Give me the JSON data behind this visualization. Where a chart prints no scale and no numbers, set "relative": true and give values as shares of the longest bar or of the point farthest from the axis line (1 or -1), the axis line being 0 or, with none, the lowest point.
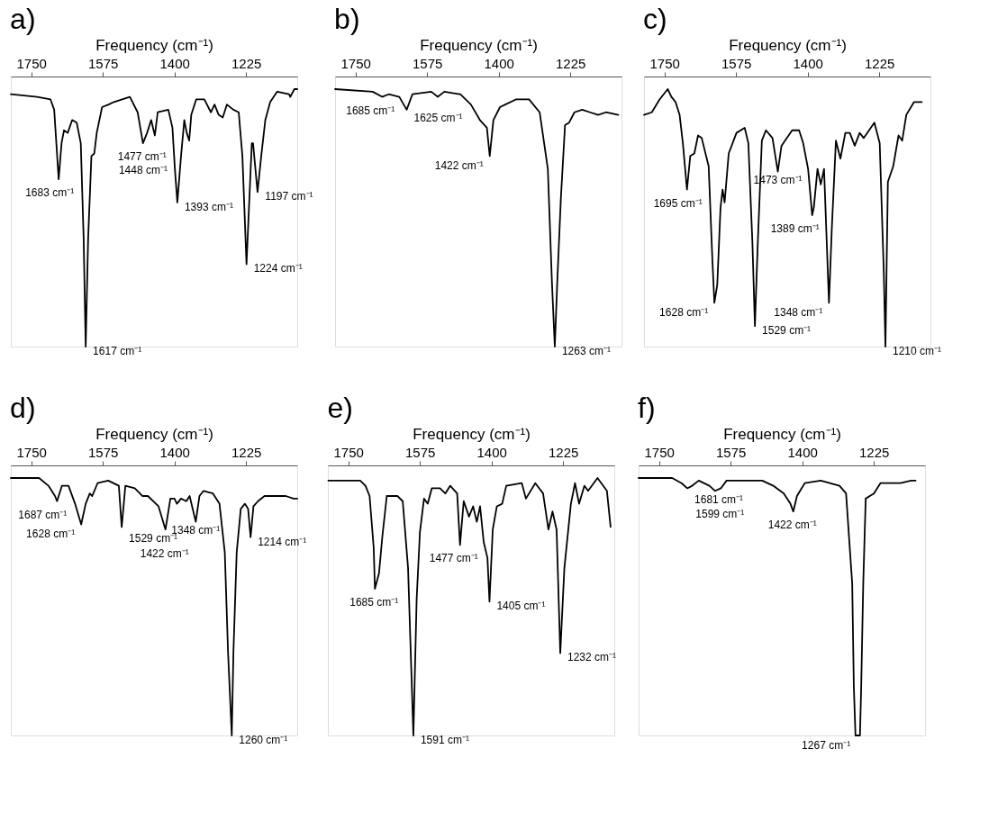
{
  "chart_data": [
    {
      "type": "line",
      "title": "a)",
      "xlabel": "Frequency (cm⁻¹)",
      "relative": true,
      "xlim": [
        1800,
        1100
      ],
      "xticks": [
        1750,
        1575,
        1400,
        1225
      ],
      "grid": false,
      "legend": false,
      "x": [
        1800,
        1736,
        1703,
        1694,
        1683,
        1676,
        1670,
        1661,
        1650,
        1639,
        1629,
        1622,
        1617,
        1611,
        1603,
        1596,
        1590,
        1577,
        1561,
        1548,
        1509,
        1490,
        1477,
        1467,
        1457,
        1448,
        1441,
        1415,
        1405,
        1399,
        1393,
        1384,
        1376,
        1370,
        1364,
        1359,
        1347,
        1327,
        1311,
        1302,
        1292,
        1282,
        1272,
        1256,
        1243,
        1234,
        1224,
        1211,
        1208,
        1197,
        1188,
        1178,
        1166,
        1149,
        1120,
        1117,
        1107,
        1100
      ],
      "series": [
        {
          "color": "#000000",
          "values": [
            0.98,
            0.97,
            0.96,
            0.92,
            0.65,
            0.79,
            0.84,
            0.83,
            0.88,
            0.87,
            0.79,
            0.42,
            0,
            0.42,
            0.74,
            0.75,
            0.83,
            0.93,
            0.94,
            0.95,
            0.97,
            0.91,
            0.79,
            0.83,
            0.88,
            0.82,
            0.91,
            0.92,
            0.85,
            0.69,
            0.56,
            0.74,
            0.88,
            0.83,
            0.8,
            0.9,
            0.96,
            0.96,
            0.91,
            0.94,
            0.9,
            0.89,
            0.94,
            0.92,
            0.91,
            0.74,
            0.32,
            0.79,
            0.79,
            0.6,
            0.74,
            0.88,
            0.95,
            0.99,
            0.98,
            0.97,
            1.0,
            1.0
          ]
        }
      ],
      "annotations": [
        {
          "text": "1683 cm⁻¹",
          "x": 1683,
          "y": 0.65
        },
        {
          "text": "1617 cm⁻¹",
          "x": 1617,
          "y": 0
        },
        {
          "text": "1477 cm⁻¹",
          "x": 1477,
          "y": 0.79
        },
        {
          "text": "1448 cm⁻¹",
          "x": 1448,
          "y": 0.82
        },
        {
          "text": "1393 cm⁻¹",
          "x": 1393,
          "y": 0.56
        },
        {
          "text": "1224 cm⁻¹",
          "x": 1224,
          "y": 0.32
        },
        {
          "text": "1197 cm⁻¹",
          "x": 1197,
          "y": 0.6
        }
      ]
    },
    {
      "type": "line",
      "title": "b)",
      "xlabel": "Frequency (cm⁻¹)",
      "relative": true,
      "xlim": [
        1800,
        1100
      ],
      "xticks": [
        1750,
        1575,
        1400,
        1225
      ],
      "grid": false,
      "legend": false,
      "x": [
        1800,
        1708,
        1685,
        1669,
        1643,
        1625,
        1611,
        1565,
        1549,
        1533,
        1494,
        1468,
        1446,
        1429,
        1422,
        1413,
        1397,
        1384,
        1358,
        1326,
        1300,
        1280,
        1270,
        1263,
        1257,
        1248,
        1238,
        1228,
        1215,
        1196,
        1177,
        1157,
        1138,
        1108
      ],
      "series": [
        {
          "color": "#000000",
          "values": [
            1.0,
            0.99,
            0.97,
            0.98,
            0.97,
            0.92,
            0.98,
            0.99,
            0.97,
            0.99,
            0.98,
            0.94,
            0.88,
            0.85,
            0.74,
            0.88,
            0.93,
            0.94,
            0.96,
            0.96,
            0.91,
            0.69,
            0.25,
            0,
            0.25,
            0.58,
            0.86,
            0.87,
            0.91,
            0.92,
            0.91,
            0.9,
            0.91,
            0.9
          ]
        }
      ],
      "annotations": [
        {
          "text": "1685 cm⁻¹",
          "x": 1685,
          "y": 0.97
        },
        {
          "text": "1625 cm⁻¹",
          "x": 1625,
          "y": 0.92
        },
        {
          "text": "1422 cm⁻¹",
          "x": 1422,
          "y": 0.74
        },
        {
          "text": "1263 cm⁻¹",
          "x": 1263,
          "y": 0
        }
      ]
    },
    {
      "type": "line",
      "title": "c)",
      "xlabel": "Frequency (cm⁻¹)",
      "relative": true,
      "xlim": [
        1800,
        1100
      ],
      "xticks": [
        1750,
        1575,
        1400,
        1225
      ],
      "grid": false,
      "legend": false,
      "x": [
        1800,
        1781,
        1762,
        1742,
        1733,
        1723,
        1713,
        1705,
        1695,
        1687,
        1677,
        1668,
        1659,
        1642,
        1633,
        1628,
        1621,
        1613,
        1608,
        1603,
        1593,
        1574,
        1554,
        1545,
        1535,
        1529,
        1522,
        1512,
        1502,
        1486,
        1473,
        1464,
        1438,
        1421,
        1411,
        1399,
        1389,
        1385,
        1376,
        1368,
        1360,
        1348,
        1341,
        1331,
        1320,
        1308,
        1297,
        1285,
        1273,
        1263,
        1237,
        1224,
        1214,
        1210,
        1204,
        1191,
        1178,
        1169,
        1159,
        1140,
        1121
      ],
      "series": [
        {
          "color": "#000000",
          "values": [
            0.9,
            0.91,
            0.96,
            1.0,
            0.97,
            0.95,
            0.9,
            0.79,
            0.61,
            0.74,
            0.75,
            0.82,
            0.81,
            0.7,
            0.34,
            0.17,
            0.24,
            0.54,
            0.61,
            0.56,
            0.75,
            0.83,
            0.85,
            0.79,
            0.4,
            0.08,
            0.4,
            0.8,
            0.84,
            0.81,
            0.68,
            0.78,
            0.84,
            0.84,
            0.79,
            0.69,
            0.51,
            0.54,
            0.69,
            0.63,
            0.69,
            0.17,
            0.46,
            0.8,
            0.73,
            0.83,
            0.83,
            0.78,
            0.83,
            0.81,
            0.87,
            0.79,
            0.29,
            0,
            0.64,
            0.7,
            0.82,
            0.8,
            0.9,
            0.95,
            0.95
          ]
        }
      ],
      "annotations": [
        {
          "text": "1695 cm⁻¹",
          "x": 1695,
          "y": 0.61
        },
        {
          "text": "1628 cm⁻¹",
          "x": 1628,
          "y": 0.17
        },
        {
          "text": "1529 cm⁻¹",
          "x": 1529,
          "y": 0.08
        },
        {
          "text": "1473 cm⁻¹",
          "x": 1473,
          "y": 0.68
        },
        {
          "text": "1389 cm⁻¹",
          "x": 1389,
          "y": 0.51
        },
        {
          "text": "1348 cm⁻¹",
          "x": 1348,
          "y": 0.17
        },
        {
          "text": "1210 cm⁻¹",
          "x": 1210,
          "y": 0
        }
      ]
    },
    {
      "type": "line",
      "title": "d)",
      "xlabel": "Frequency (cm⁻¹)",
      "relative": true,
      "xlim": [
        1800,
        1100
      ],
      "xticks": [
        1750,
        1575,
        1400,
        1225
      ],
      "grid": false,
      "legend": false,
      "x": [
        1800,
        1731,
        1708,
        1692,
        1687,
        1675,
        1659,
        1643,
        1628,
        1617,
        1607,
        1601,
        1588,
        1562,
        1536,
        1529,
        1520,
        1497,
        1478,
        1465,
        1439,
        1422,
        1410,
        1400,
        1394,
        1384,
        1371,
        1363,
        1348,
        1339,
        1329,
        1306,
        1290,
        1277,
        1269,
        1260,
        1256,
        1248,
        1238,
        1228,
        1220,
        1214,
        1207,
        1196,
        1180,
        1128,
        1109,
        1100
      ],
      "series": [
        {
          "color": "#000000",
          "values": [
            1.0,
            1.0,
            0.97,
            0.93,
            0.91,
            0.97,
            0.97,
            0.9,
            0.82,
            0.9,
            0.94,
            0.93,
            0.98,
            0.99,
            0.97,
            0.81,
            0.97,
            0.96,
            0.93,
            0.93,
            0.89,
            0.8,
            0.92,
            0.92,
            0.9,
            0.92,
            0.91,
            0.93,
            0.83,
            0.93,
            0.95,
            0.94,
            0.9,
            0.71,
            0.32,
            0,
            0.32,
            0.71,
            0.88,
            0.9,
            0.88,
            0.77,
            0.89,
            0.91,
            0.93,
            0.93,
            0.92,
            0.92
          ]
        }
      ],
      "annotations": [
        {
          "text": "1687 cm⁻¹",
          "x": 1687,
          "y": 0.91
        },
        {
          "text": "1628 cm⁻¹",
          "x": 1628,
          "y": 0.82
        },
        {
          "text": "1529 cm⁻¹",
          "x": 1529,
          "y": 0.81
        },
        {
          "text": "1422 cm⁻¹",
          "x": 1422,
          "y": 0.8
        },
        {
          "text": "1348 cm⁻¹",
          "x": 1348,
          "y": 0.83
        },
        {
          "text": "1260 cm⁻¹",
          "x": 1260,
          "y": 0
        },
        {
          "text": "1214 cm⁻¹",
          "x": 1214,
          "y": 0.77
        }
      ]
    },
    {
      "type": "line",
      "title": "e)",
      "xlabel": "Frequency (cm⁻¹)",
      "relative": true,
      "xlim": [
        1800,
        1100
      ],
      "xticks": [
        1750,
        1575,
        1400,
        1225
      ],
      "grid": false,
      "legend": false,
      "x": [
        1799,
        1773,
        1747,
        1721,
        1708,
        1698,
        1688,
        1685,
        1675,
        1667,
        1656,
        1643,
        1630,
        1617,
        1604,
        1594,
        1591,
        1583,
        1575,
        1565,
        1556,
        1546,
        1526,
        1513,
        1501,
        1484,
        1477,
        1468,
        1455,
        1445,
        1436,
        1428,
        1419,
        1410,
        1405,
        1397,
        1387,
        1374,
        1364,
        1326,
        1316,
        1293,
        1274,
        1261,
        1251,
        1241,
        1232,
        1222,
        1206,
        1196,
        1186,
        1173,
        1164,
        1141,
        1118,
        1109
      ],
      "series": [
        {
          "color": "#000000",
          "values": [
            0.99,
            0.99,
            0.99,
            0.99,
            0.97,
            0.93,
            0.73,
            0.57,
            0.63,
            0.77,
            0.93,
            0.93,
            0.93,
            0.91,
            0.65,
            0.15,
            0,
            0.53,
            0.79,
            0.92,
            0.9,
            0.96,
            0.96,
            0.94,
            0.97,
            0.94,
            0.74,
            0.91,
            0.85,
            0.89,
            0.83,
            0.89,
            0.75,
            0.69,
            0.52,
            0.8,
            0.89,
            0.9,
            0.97,
            0.98,
            0.92,
            0.98,
            0.94,
            0.8,
            0.87,
            0.8,
            0.32,
            0.65,
            0.9,
            0.98,
            0.9,
            0.97,
            0.95,
            1.0,
            0.95,
            0.81
          ]
        }
      ],
      "annotations": [
        {
          "text": "1685 cm⁻¹",
          "x": 1685,
          "y": 0.57
        },
        {
          "text": "1591 cm⁻¹",
          "x": 1591,
          "y": 0
        },
        {
          "text": "1477 cm⁻¹",
          "x": 1477,
          "y": 0.74
        },
        {
          "text": "1405 cm⁻¹",
          "x": 1405,
          "y": 0.52
        },
        {
          "text": "1232 cm⁻¹",
          "x": 1232,
          "y": 0.32
        }
      ]
    },
    {
      "type": "line",
      "title": "f)",
      "xlabel": "Frequency (cm⁻¹)",
      "relative": true,
      "xlim": [
        1800,
        1100
      ],
      "xticks": [
        1750,
        1575,
        1400,
        1225
      ],
      "grid": false,
      "legend": false,
      "x": [
        1800,
        1718,
        1695,
        1681,
        1669,
        1653,
        1627,
        1613,
        1599,
        1585,
        1549,
        1498,
        1471,
        1445,
        1429,
        1422,
        1413,
        1394,
        1355,
        1309,
        1293,
        1278,
        1274,
        1270,
        1259,
        1256,
        1251,
        1245,
        1235,
        1225,
        1209,
        1180,
        1160,
        1134,
        1123
      ],
      "series": [
        {
          "color": "#000000",
          "values": [
            1.0,
            1.0,
            0.98,
            0.96,
            0.97,
            0.99,
            0.97,
            0.95,
            0.96,
            0.99,
            0.99,
            0.99,
            0.97,
            0.94,
            0.9,
            0.87,
            0.93,
            0.98,
            0.99,
            0.97,
            0.94,
            0.59,
            0.19,
            0,
            0,
            0.19,
            0.59,
            0.92,
            0.93,
            0.94,
            0.98,
            0.98,
            0.98,
            0.99,
            0.99
          ]
        }
      ],
      "annotations": [
        {
          "text": "1681 cm⁻¹",
          "x": 1681,
          "y": 0.96
        },
        {
          "text": "1599 cm⁻¹",
          "x": 1599,
          "y": 0.96
        },
        {
          "text": "1422 cm⁻¹",
          "x": 1422,
          "y": 0.87
        },
        {
          "text": "1267 cm⁻¹",
          "x": 1267,
          "y": 0
        }
      ]
    }
  ]
}
